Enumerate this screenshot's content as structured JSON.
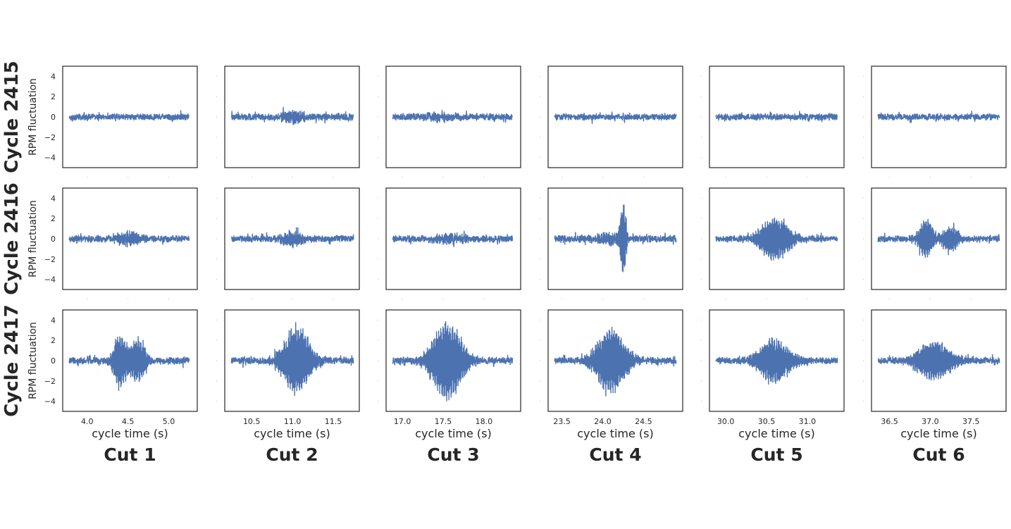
{
  "colors": {
    "line": "#4c72b0",
    "text": "#262626",
    "frame": "#262626"
  },
  "row_labels": [
    "Cycle 2415",
    "Cycle 2416",
    "Cycle 2417"
  ],
  "col_labels": [
    "Cut 1",
    "Cut 2",
    "Cut 3",
    "Cut 4",
    "Cut 5",
    "Cut 6"
  ],
  "xlabel": "cycle time (s)",
  "ylabel": "RPM fluctuation",
  "chart_data": {
    "type": "line",
    "layout": "grid 3 rows x 6 columns, shared y axis",
    "grid": false,
    "ylim": [
      -5,
      5
    ],
    "yticks": [
      -4,
      -2,
      0,
      2,
      4
    ],
    "ytick_labels": [
      "−4",
      "−2",
      "0",
      "2",
      "4"
    ],
    "columns": [
      {
        "cut": "Cut 1",
        "xlim": [
          3.7,
          5.35
        ],
        "xticks": [
          4.0,
          4.5,
          5.0
        ],
        "xtick_labels": [
          "4.0",
          "4.5",
          "5.0"
        ],
        "t_start": 3.78,
        "t_end": 5.25
      },
      {
        "cut": "Cut 2",
        "xlim": [
          10.17,
          11.82
        ],
        "xticks": [
          10.5,
          11.0,
          11.5
        ],
        "xtick_labels": [
          "10.5",
          "11.0",
          "11.5"
        ],
        "t_start": 10.25,
        "t_end": 11.75
      },
      {
        "cut": "Cut 3",
        "xlim": [
          16.8,
          18.45
        ],
        "xticks": [
          17.0,
          17.5,
          18.0
        ],
        "xtick_labels": [
          "17.0",
          "17.5",
          "18.0"
        ],
        "t_start": 16.88,
        "t_end": 18.35
      },
      {
        "cut": "Cut 4",
        "xlim": [
          23.33,
          24.98
        ],
        "xticks": [
          23.5,
          24.0,
          24.5
        ],
        "xtick_labels": [
          "23.5",
          "24.0",
          "24.5"
        ],
        "t_start": 23.41,
        "t_end": 24.9
      },
      {
        "cut": "Cut 5",
        "xlim": [
          29.8,
          31.45
        ],
        "xticks": [
          30.0,
          30.5,
          31.0
        ],
        "xtick_labels": [
          "30.0",
          "30.5",
          "31.0"
        ],
        "t_start": 29.88,
        "t_end": 31.37
      },
      {
        "cut": "Cut 6",
        "xlim": [
          36.28,
          37.93
        ],
        "xticks": [
          36.5,
          37.0,
          37.5
        ],
        "xtick_labels": [
          "36.5",
          "37.0",
          "37.5"
        ],
        "t_start": 36.36,
        "t_end": 37.85
      }
    ],
    "series": [
      {
        "cycle": "Cycle 2415",
        "cut": "Cut 1",
        "noise": 0.35,
        "bursts": []
      },
      {
        "cycle": "Cycle 2415",
        "cut": "Cut 2",
        "noise": 0.38,
        "bursts": [
          {
            "t": 11.0,
            "width": 0.15,
            "amp": 0.6
          }
        ]
      },
      {
        "cycle": "Cycle 2415",
        "cut": "Cut 3",
        "noise": 0.38,
        "bursts": [
          {
            "t": 17.5,
            "width": 0.2,
            "amp": 0.4
          }
        ]
      },
      {
        "cycle": "Cycle 2415",
        "cut": "Cut 4",
        "noise": 0.34,
        "bursts": []
      },
      {
        "cycle": "Cycle 2415",
        "cut": "Cut 5",
        "noise": 0.36,
        "bursts": []
      },
      {
        "cycle": "Cycle 2415",
        "cut": "Cut 6",
        "noise": 0.35,
        "bursts": []
      },
      {
        "cycle": "Cycle 2416",
        "cut": "Cut 1",
        "noise": 0.35,
        "bursts": [
          {
            "t": 4.5,
            "width": 0.2,
            "amp": 0.6
          }
        ]
      },
      {
        "cycle": "Cycle 2416",
        "cut": "Cut 2",
        "noise": 0.35,
        "bursts": [
          {
            "t": 11.0,
            "width": 0.15,
            "amp": 0.7
          }
        ]
      },
      {
        "cycle": "Cycle 2416",
        "cut": "Cut 3",
        "noise": 0.37,
        "bursts": [
          {
            "t": 17.6,
            "width": 0.2,
            "amp": 0.5
          }
        ]
      },
      {
        "cycle": "Cycle 2416",
        "cut": "Cut 4",
        "noise": 0.38,
        "bursts": [
          {
            "t": 24.25,
            "width": 0.04,
            "amp": 4.2
          },
          {
            "t": 24.05,
            "width": 0.15,
            "amp": 0.6
          }
        ]
      },
      {
        "cycle": "Cycle 2416",
        "cut": "Cut 5",
        "noise": 0.35,
        "bursts": [
          {
            "t": 30.6,
            "width": 0.22,
            "amp": 2.2
          }
        ]
      },
      {
        "cycle": "Cycle 2416",
        "cut": "Cut 6",
        "noise": 0.35,
        "bursts": [
          {
            "t": 36.95,
            "width": 0.1,
            "amp": 2.1
          },
          {
            "t": 37.25,
            "width": 0.12,
            "amp": 1.3
          }
        ]
      },
      {
        "cycle": "Cycle 2417",
        "cut": "Cut 1",
        "noise": 0.38,
        "bursts": [
          {
            "t": 4.4,
            "width": 0.09,
            "amp": 2.8
          },
          {
            "t": 4.62,
            "width": 0.12,
            "amp": 2.2
          }
        ]
      },
      {
        "cycle": "Cycle 2417",
        "cut": "Cut 2",
        "noise": 0.38,
        "bursts": [
          {
            "t": 11.05,
            "width": 0.2,
            "amp": 3.5
          }
        ]
      },
      {
        "cycle": "Cycle 2417",
        "cut": "Cut 3",
        "noise": 0.38,
        "bursts": [
          {
            "t": 17.55,
            "width": 0.22,
            "amp": 4.0
          }
        ]
      },
      {
        "cycle": "Cycle 2417",
        "cut": "Cut 4",
        "noise": 0.36,
        "bursts": [
          {
            "t": 24.1,
            "width": 0.22,
            "amp": 3.3
          }
        ]
      },
      {
        "cycle": "Cycle 2417",
        "cut": "Cut 5",
        "noise": 0.36,
        "bursts": [
          {
            "t": 30.6,
            "width": 0.22,
            "amp": 2.3
          }
        ]
      },
      {
        "cycle": "Cycle 2417",
        "cut": "Cut 6",
        "noise": 0.35,
        "bursts": [
          {
            "t": 37.05,
            "width": 0.25,
            "amp": 2.0
          }
        ]
      }
    ]
  }
}
